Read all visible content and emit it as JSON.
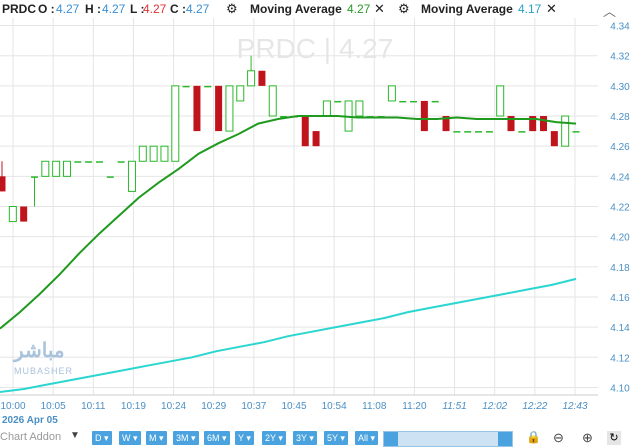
{
  "legend": {
    "symbol": "PRDC",
    "o_label": "O :",
    "o_value": "4.27",
    "h_label": "H :",
    "h_value": "4.27",
    "l_label": "L :",
    "l_value": "4.27",
    "c_label": "C :",
    "c_value": "4.27",
    "ma1_label": "Moving Average",
    "ma1_value": "4.27",
    "ma2_label": "Moving Average",
    "ma2_value": "4.17"
  },
  "watermark": {
    "text": "PRDC | 4.27",
    "brand": "مباشر",
    "brand_latin": "MUBASHER"
  },
  "toolbar": {
    "chart_addon": "Chart Addon",
    "period_buttons": [
      "D",
      "W",
      "M",
      "3M",
      "6M",
      "Y",
      "2Y",
      "3Y",
      "5Y",
      "All"
    ]
  },
  "colors": {
    "up": "#2ab82a",
    "down": "#c0141c",
    "ma_fast": "#1f9a1f",
    "ma_slow": "#2ad6cf",
    "grid": "#e5e5e5"
  },
  "icons": [
    "gear-icon",
    "close-icon",
    "chevron-up-icon",
    "lock-icon",
    "zoom-out-icon",
    "zoom-in-icon",
    "refresh-icon"
  ],
  "chart_data": {
    "type": "candlestick",
    "x_ticks": [
      "10:00",
      "10:05",
      "10:11",
      "10:19",
      "10:24",
      "10:29",
      "10:37",
      "10:45",
      "10:54",
      "11:08",
      "11:20",
      "11:51",
      "12:02",
      "12:22",
      "12:43"
    ],
    "x_date_label": "2026 Apr 05",
    "y_ticks": [
      "4.10",
      "4.12",
      "4.14",
      "4.16",
      "4.18",
      "4.20",
      "4.22",
      "4.24",
      "4.26",
      "4.28",
      "4.30",
      "4.32",
      "4.34"
    ],
    "ylim": [
      4.095,
      4.345
    ],
    "candles": [
      {
        "o": 4.24,
        "h": 4.25,
        "l": 4.23,
        "c": 4.23
      },
      {
        "o": 4.21,
        "h": 4.22,
        "l": 4.21,
        "c": 4.22
      },
      {
        "o": 4.22,
        "h": 4.22,
        "l": 4.21,
        "c": 4.21
      },
      {
        "o": 4.24,
        "h": 4.24,
        "l": 4.22,
        "c": 4.24
      },
      {
        "o": 4.24,
        "h": 4.25,
        "l": 4.24,
        "c": 4.25
      },
      {
        "o": 4.24,
        "h": 4.25,
        "l": 4.24,
        "c": 4.25
      },
      {
        "o": 4.24,
        "h": 4.25,
        "l": 4.24,
        "c": 4.25
      },
      {
        "o": 4.25,
        "h": 4.25,
        "l": 4.25,
        "c": 4.25
      },
      {
        "o": 4.25,
        "h": 4.25,
        "l": 4.25,
        "c": 4.25
      },
      {
        "o": 4.25,
        "h": 4.25,
        "l": 4.25,
        "c": 4.25
      },
      {
        "o": 4.24,
        "h": 4.24,
        "l": 4.24,
        "c": 4.24
      },
      {
        "o": 4.25,
        "h": 4.25,
        "l": 4.25,
        "c": 4.25
      },
      {
        "o": 4.23,
        "h": 4.25,
        "l": 4.23,
        "c": 4.25
      },
      {
        "o": 4.25,
        "h": 4.26,
        "l": 4.25,
        "c": 4.26
      },
      {
        "o": 4.25,
        "h": 4.26,
        "l": 4.25,
        "c": 4.26
      },
      {
        "o": 4.25,
        "h": 4.26,
        "l": 4.25,
        "c": 4.26
      },
      {
        "o": 4.25,
        "h": 4.3,
        "l": 4.25,
        "c": 4.3
      },
      {
        "o": 4.3,
        "h": 4.3,
        "l": 4.3,
        "c": 4.3
      },
      {
        "o": 4.3,
        "h": 4.3,
        "l": 4.27,
        "c": 4.27
      },
      {
        "o": 4.3,
        "h": 4.3,
        "l": 4.3,
        "c": 4.3
      },
      {
        "o": 4.3,
        "h": 4.3,
        "l": 4.27,
        "c": 4.27
      },
      {
        "o": 4.27,
        "h": 4.3,
        "l": 4.27,
        "c": 4.3
      },
      {
        "o": 4.29,
        "h": 4.3,
        "l": 4.29,
        "c": 4.3
      },
      {
        "o": 4.3,
        "h": 4.32,
        "l": 4.3,
        "c": 4.31
      },
      {
        "o": 4.31,
        "h": 4.31,
        "l": 4.3,
        "c": 4.3
      },
      {
        "o": 4.28,
        "h": 4.3,
        "l": 4.28,
        "c": 4.3
      },
      {
        "o": 4.28,
        "h": 4.28,
        "l": 4.28,
        "c": 4.28
      },
      {
        "o": 4.28,
        "h": 4.28,
        "l": 4.28,
        "c": 4.28
      },
      {
        "o": 4.28,
        "h": 4.28,
        "l": 4.26,
        "c": 4.26
      },
      {
        "o": 4.27,
        "h": 4.27,
        "l": 4.26,
        "c": 4.26
      },
      {
        "o": 4.28,
        "h": 4.29,
        "l": 4.28,
        "c": 4.29
      },
      {
        "o": 4.29,
        "h": 4.29,
        "l": 4.29,
        "c": 4.29
      },
      {
        "o": 4.27,
        "h": 4.29,
        "l": 4.27,
        "c": 4.29
      },
      {
        "o": 4.28,
        "h": 4.29,
        "l": 4.28,
        "c": 4.29
      },
      {
        "o": 4.28,
        "h": 4.28,
        "l": 4.28,
        "c": 4.28
      },
      {
        "o": 4.28,
        "h": 4.28,
        "l": 4.28,
        "c": 4.28
      },
      {
        "o": 4.29,
        "h": 4.3,
        "l": 4.29,
        "c": 4.3
      },
      {
        "o": 4.29,
        "h": 4.29,
        "l": 4.29,
        "c": 4.29
      },
      {
        "o": 4.29,
        "h": 4.29,
        "l": 4.29,
        "c": 4.29
      },
      {
        "o": 4.29,
        "h": 4.29,
        "l": 4.27,
        "c": 4.27
      },
      {
        "o": 4.29,
        "h": 4.29,
        "l": 4.29,
        "c": 4.29
      },
      {
        "o": 4.28,
        "h": 4.28,
        "l": 4.27,
        "c": 4.27
      },
      {
        "o": 4.27,
        "h": 4.27,
        "l": 4.27,
        "c": 4.27
      },
      {
        "o": 4.27,
        "h": 4.27,
        "l": 4.27,
        "c": 4.27
      },
      {
        "o": 4.27,
        "h": 4.27,
        "l": 4.27,
        "c": 4.27
      },
      {
        "o": 4.27,
        "h": 4.27,
        "l": 4.27,
        "c": 4.27
      },
      {
        "o": 4.28,
        "h": 4.3,
        "l": 4.28,
        "c": 4.3
      },
      {
        "o": 4.28,
        "h": 4.28,
        "l": 4.27,
        "c": 4.27
      },
      {
        "o": 4.27,
        "h": 4.27,
        "l": 4.27,
        "c": 4.27
      },
      {
        "o": 4.28,
        "h": 4.28,
        "l": 4.27,
        "c": 4.27
      },
      {
        "o": 4.28,
        "h": 4.28,
        "l": 4.27,
        "c": 4.27
      },
      {
        "o": 4.27,
        "h": 4.27,
        "l": 4.26,
        "c": 4.26
      },
      {
        "o": 4.26,
        "h": 4.28,
        "l": 4.26,
        "c": 4.28
      },
      {
        "o": 4.27,
        "h": 4.27,
        "l": 4.27,
        "c": 4.27
      }
    ],
    "series": [
      {
        "name": "Moving Average",
        "values": [
          4.139,
          4.15,
          4.162,
          4.175,
          4.189,
          4.202,
          4.214,
          4.226,
          4.236,
          4.245,
          4.255,
          4.262,
          4.268,
          4.275,
          4.278,
          4.28,
          4.28,
          4.28,
          4.279,
          4.279,
          4.279,
          4.278,
          4.278,
          4.279,
          4.278,
          4.278,
          4.278,
          4.278,
          4.276,
          4.275
        ]
      },
      {
        "name": "Moving Average",
        "values": [
          4.097,
          4.099,
          4.102,
          4.105,
          4.108,
          4.111,
          4.114,
          4.117,
          4.12,
          4.124,
          4.127,
          4.13,
          4.134,
          4.137,
          4.14,
          4.143,
          4.146,
          4.15,
          4.153,
          4.156,
          4.159,
          4.162,
          4.165,
          4.168,
          4.172
        ]
      }
    ]
  }
}
